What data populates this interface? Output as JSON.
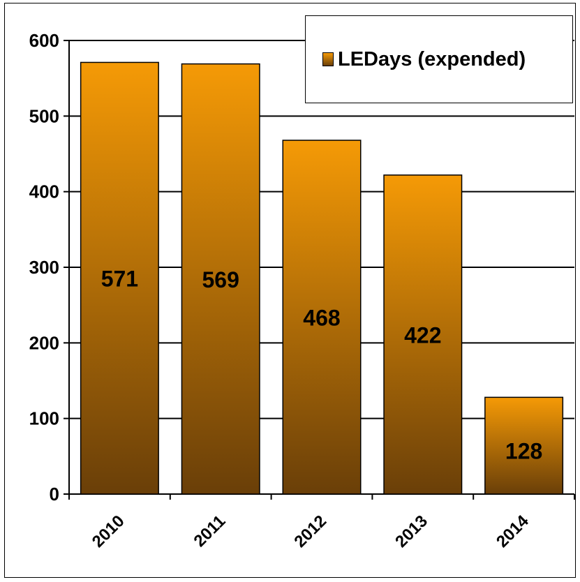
{
  "chart_data": {
    "type": "bar",
    "categories": [
      "2010",
      "2011",
      "2012",
      "2013",
      "2014"
    ],
    "series": [
      {
        "name": "LEDays (expended)",
        "values": [
          571,
          569,
          468,
          422,
          128
        ]
      }
    ],
    "data_labels": [
      "571",
      "569",
      "468",
      "422",
      "128"
    ],
    "y_ticks": [
      "0",
      "100",
      "200",
      "300",
      "400",
      "500",
      "600"
    ],
    "ylim": [
      0,
      600
    ],
    "grid": true,
    "legend_position": "top-right",
    "bar_color_top": "#f59a06",
    "bar_color_bottom": "#6a3f08"
  }
}
